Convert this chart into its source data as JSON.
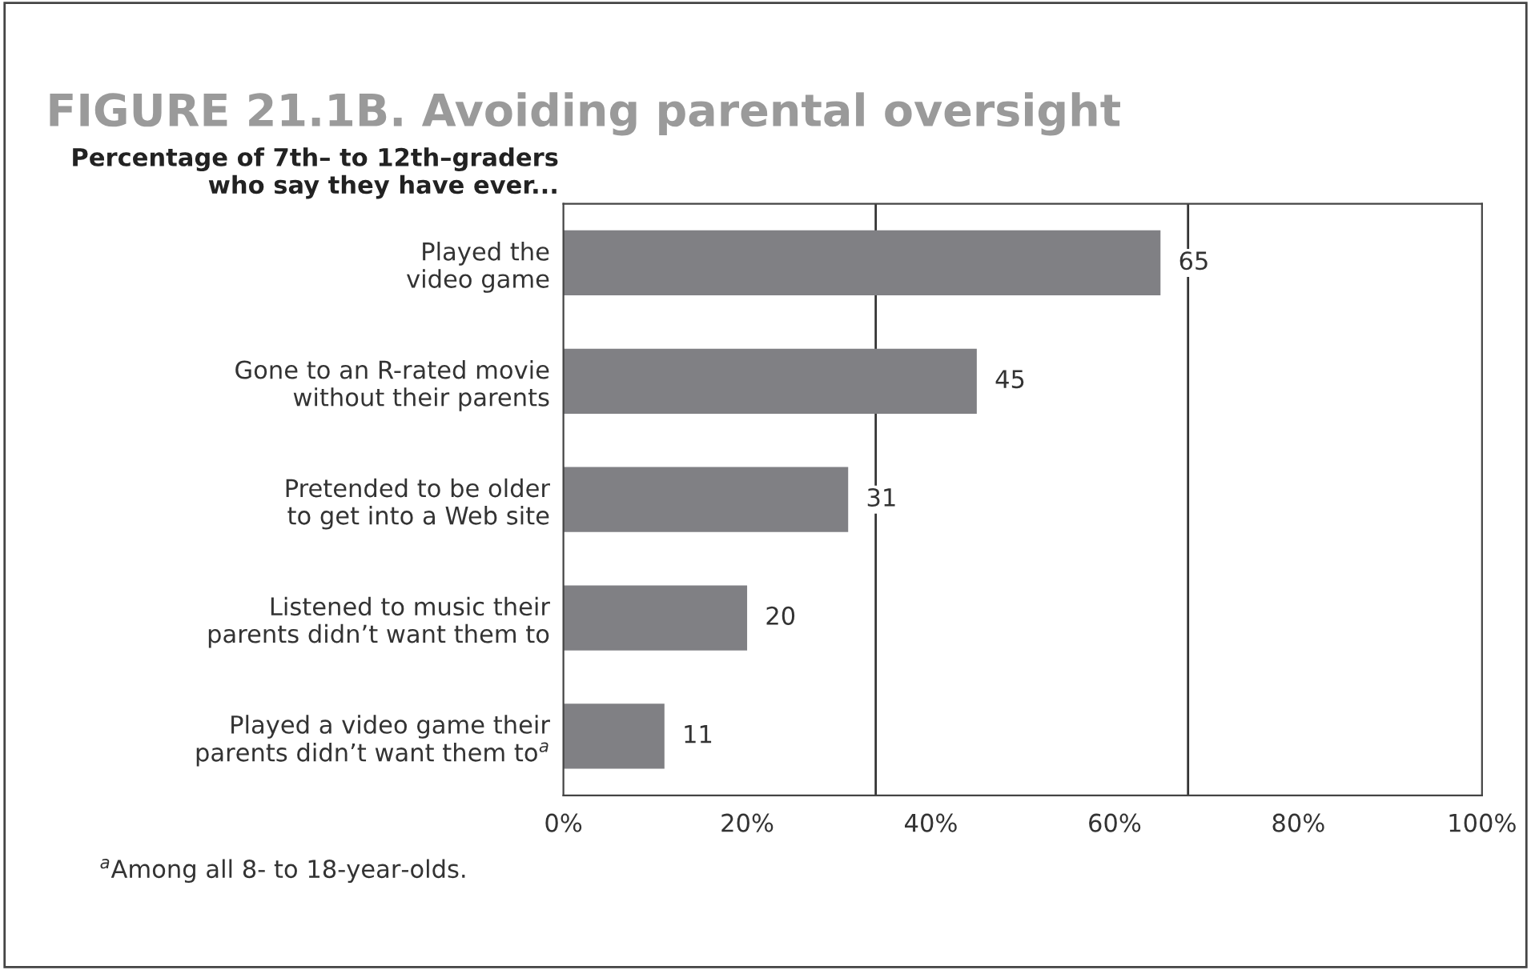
{
  "chart_data": {
    "type": "bar",
    "orientation": "horizontal",
    "title": "FIGURE 21.1B. Avoiding parental oversight",
    "subtitle": "Percentage of 7th– to 12th–graders\nwho say they have ever...",
    "categories": [
      "Played the\nvideo game",
      "Gone to an R-rated movie\nwithout their parents",
      "Pretended to be older\nto get into a Web site",
      "Listened to music their\nparents didn’t want them to",
      "Played a video game their\nparents didn’t want them to$^{a}$"
    ],
    "values": [
      65,
      45,
      31,
      20,
      11
    ],
    "color": "#808084",
    "data_labels": true,
    "xlim": [
      0,
      100
    ],
    "xticks": [
      {
        "value": 0,
        "label": "0%"
      },
      {
        "value": 20,
        "label": "20%"
      },
      {
        "value": 40,
        "label": "40%"
      },
      {
        "value": 60,
        "label": "60%"
      },
      {
        "value": 80,
        "label": "80%"
      },
      {
        "value": 100,
        "label": "100%"
      }
    ],
    "ref_lines": [
      {
        "axis": "x",
        "value": 34,
        "label": null,
        "color": "#333333"
      },
      {
        "axis": "x",
        "value": 68,
        "label": null,
        "color": "#333333"
      }
    ],
    "grid": false,
    "legend": false,
    "annotations": [
      "$^{a}$Among all 8- to 18-year-olds."
    ]
  }
}
